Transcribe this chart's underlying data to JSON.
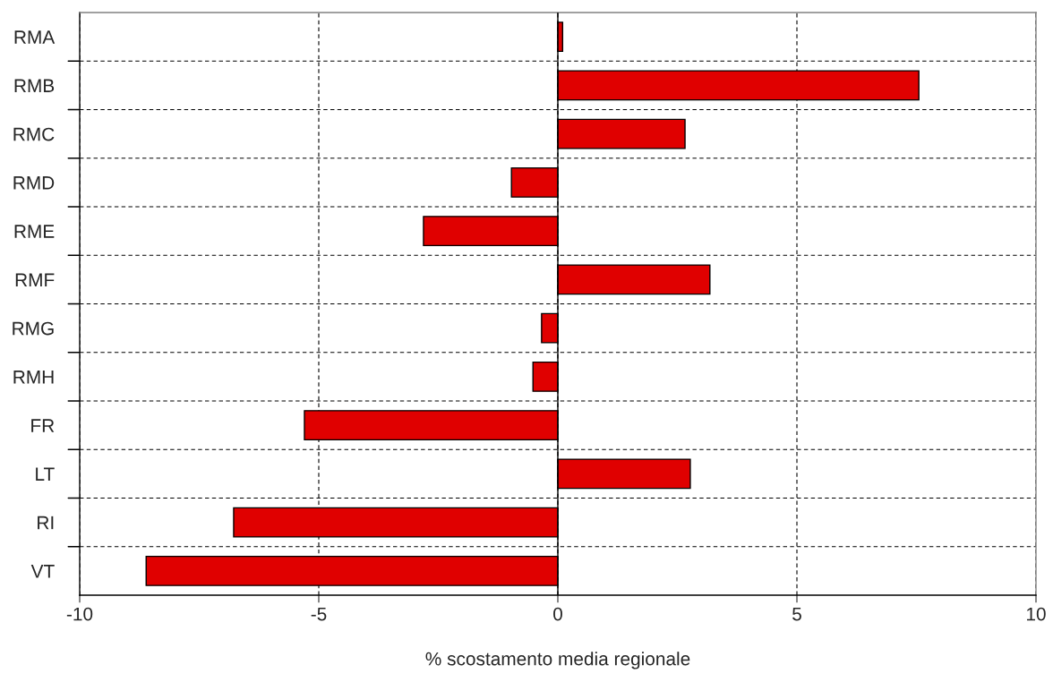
{
  "chart_data": {
    "type": "bar",
    "orientation": "horizontal",
    "categories": [
      "RMA",
      "RMB",
      "RMC",
      "RMD",
      "RME",
      "RMF",
      "RMG",
      "RMH",
      "FR",
      "LT",
      "RI",
      "VT"
    ],
    "values": [
      0.1,
      7.55,
      2.66,
      -0.97,
      -2.81,
      3.18,
      -0.34,
      -0.52,
      -5.3,
      2.77,
      -6.78,
      -8.61
    ],
    "color": "#e00000",
    "xlabel": "% scostamento media regionale",
    "xlim": [
      -10,
      10
    ],
    "xticks": [
      -10,
      -5,
      0,
      5,
      10
    ],
    "grid": true
  }
}
